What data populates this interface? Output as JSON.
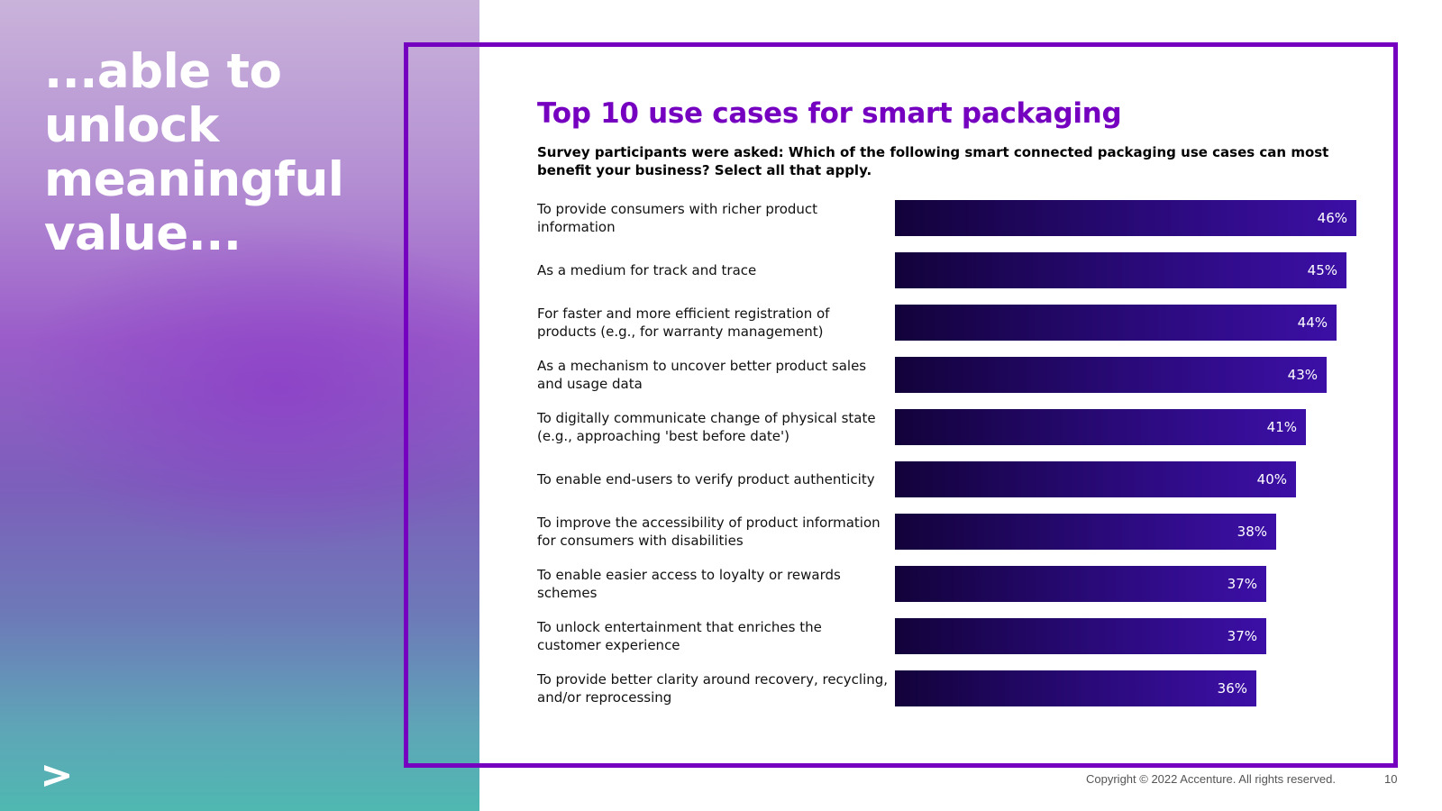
{
  "headline": [
    "...able to",
    "unlock",
    "meaningful",
    "value..."
  ],
  "logo_icon": "accenture-chevron-icon",
  "footer": {
    "copyright": "Copyright © 2022 Accenture. All rights reserved.",
    "page_number": "10"
  },
  "colors": {
    "accent_purple": "#7500c0",
    "bar_dark": "#12023a",
    "bar_light": "#3c0fa6"
  },
  "chart_data": {
    "type": "bar",
    "orientation": "horizontal",
    "title": "Top 10 use cases for smart packaging",
    "subtitle": "Survey participants were asked: Which of the following smart connected packaging use cases can most benefit your business? Select all that apply.",
    "categories": [
      "To provide consumers with richer product information",
      "As a medium for track and trace",
      "For faster and more efficient registration of products (e.g., for warranty management)",
      "As a mechanism to uncover better product sales and usage data",
      "To digitally communicate change of physical state (e.g., approaching 'best before date')",
      "To enable end-users to verify product authenticity",
      "To improve the accessibility of product information for consumers with disabilities",
      "To enable easier access to loyalty or rewards schemes",
      "To unlock entertainment that enriches the customer experience",
      "To provide better clarity around recovery, recycling, and/or reprocessing"
    ],
    "values": [
      46,
      45,
      44,
      43,
      41,
      40,
      38,
      37,
      37,
      36
    ],
    "value_labels": [
      "46%",
      "45%",
      "44%",
      "43%",
      "41%",
      "40%",
      "38%",
      "37%",
      "37%",
      "36%"
    ],
    "value_unit": "%",
    "grid": false,
    "legend": "none"
  }
}
